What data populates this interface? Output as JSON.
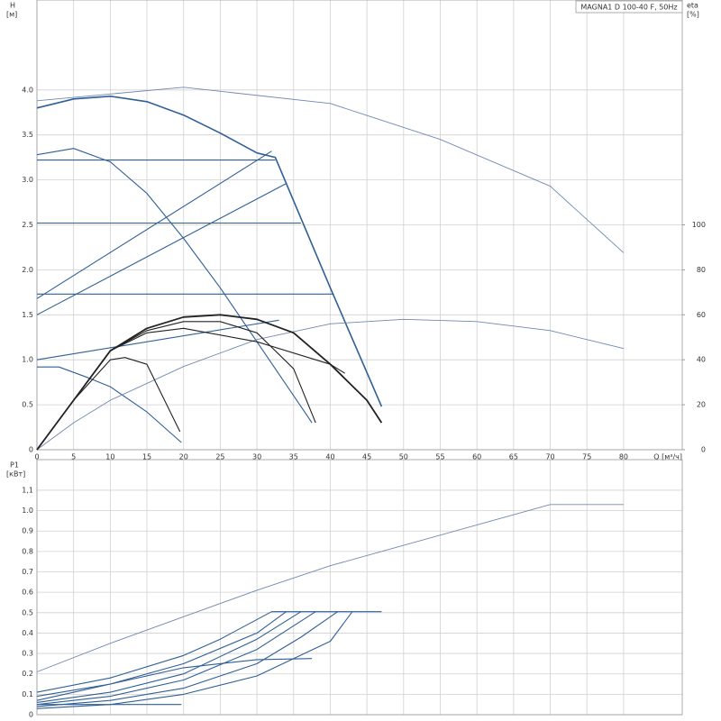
{
  "chart_data": [
    {
      "type": "line",
      "title": "MAGNA1 D 100-40 F, 50Hz",
      "y_label": "H",
      "y_unit": "[м]",
      "y2_label": "eta",
      "y2_unit": "[%]",
      "x_label": "Q [м³/ч]",
      "xlim": [
        0,
        88
      ],
      "ylim": [
        0,
        5
      ],
      "y2lim": [
        0,
        200
      ],
      "grid": true,
      "xticks": [
        0,
        5,
        10,
        15,
        20,
        25,
        30,
        35,
        40,
        45,
        50,
        55,
        60,
        65,
        70,
        75,
        80
      ],
      "yticks": [
        0,
        {
          "value": 0.5,
          "label": "0.5"
        },
        {
          "value": 1,
          "label": "1.0"
        },
        {
          "value": 1.5,
          "label": "1.5"
        },
        {
          "value": 2,
          "label": "2.0"
        },
        {
          "value": 2.5,
          "label": "2.5"
        },
        {
          "value": 3,
          "label": "3.0"
        },
        {
          "value": 3.5,
          "label": "3.5"
        },
        {
          "value": 4,
          "label": "4.0"
        }
      ],
      "y2ticks": [
        0,
        20,
        40,
        60,
        80,
        100
      ],
      "series": [
        {
          "color": "#2f5f96",
          "width": 1.6,
          "x": [
            0,
            5,
            10,
            15,
            20,
            25,
            30,
            32.5,
            40,
            47
          ],
          "values": [
            3.8,
            3.9,
            3.93,
            3.87,
            3.72,
            3.52,
            3.3,
            3.25,
            1.8,
            0.48
          ]
        },
        {
          "color": "#2f5f96",
          "width": 1.1,
          "x": [
            0,
            5,
            10,
            15,
            20,
            25,
            30,
            35,
            37.5
          ],
          "values": [
            3.28,
            3.35,
            3.2,
            2.85,
            2.35,
            1.8,
            1.2,
            0.6,
            0.3
          ]
        },
        {
          "color": "#2f5f96",
          "width": 1.1,
          "x": [
            0,
            3,
            7,
            10,
            15,
            19.7
          ],
          "values": [
            0.92,
            0.92,
            0.8,
            0.7,
            0.42,
            0.08
          ]
        },
        {
          "color": "#2f5f96",
          "width": 1.1,
          "x": [
            0,
            32.5
          ],
          "values": [
            3.22,
            3.22
          ]
        },
        {
          "color": "#2f5f96",
          "width": 1.1,
          "x": [
            0,
            36
          ],
          "values": [
            2.52,
            2.52
          ]
        },
        {
          "color": "#2f5f96",
          "width": 1.1,
          "x": [
            0,
            40.5
          ],
          "values": [
            1.73,
            1.73
          ]
        },
        {
          "color": "#2f5f96",
          "width": 1.1,
          "x": [
            0,
            32
          ],
          "values": [
            1.68,
            3.32
          ]
        },
        {
          "color": "#2f5f96",
          "width": 1.1,
          "x": [
            0,
            34
          ],
          "values": [
            1.5,
            2.96
          ]
        },
        {
          "color": "#2f5f96",
          "width": 1.1,
          "x": [
            0,
            33
          ],
          "values": [
            1.0,
            1.44
          ]
        },
        {
          "color": "#7088b0",
          "width": 0.9,
          "x": [
            0,
            20,
            40,
            55,
            70,
            80
          ],
          "values": [
            3.88,
            4.03,
            3.85,
            3.45,
            2.93,
            2.19
          ]
        },
        {
          "color": "#7088b0",
          "width": 0.9,
          "axis": "y2",
          "x": [
            0,
            5,
            10,
            20,
            30,
            40,
            50,
            60,
            70,
            80
          ],
          "values": [
            0,
            12,
            22,
            37,
            49,
            56,
            58,
            57,
            53,
            45
          ]
        },
        {
          "color": "#222222",
          "width": 1.1,
          "axis": "y2",
          "x": [
            0,
            5,
            10,
            12,
            15,
            19.5
          ],
          "values": [
            0,
            22,
            40,
            41,
            38,
            8
          ]
        },
        {
          "color": "#222222",
          "width": 1.1,
          "axis": "y2",
          "x": [
            0,
            5,
            10,
            15,
            20,
            25,
            30,
            35,
            38
          ],
          "values": [
            0,
            22,
            44,
            53,
            57,
            57,
            52,
            36,
            12
          ]
        },
        {
          "color": "#222222",
          "width": 1.8,
          "axis": "y2",
          "x": [
            0,
            5,
            10,
            15,
            20,
            25,
            30,
            35,
            40,
            45,
            47
          ],
          "values": [
            0,
            22,
            44,
            54,
            59,
            60,
            58,
            52,
            38,
            22,
            12
          ]
        },
        {
          "color": "#222222",
          "width": 1.1,
          "axis": "y2",
          "x": [
            0,
            5,
            10,
            15,
            20,
            30,
            40,
            42
          ],
          "values": [
            0,
            22,
            44,
            52,
            54,
            48,
            38,
            34
          ]
        }
      ]
    },
    {
      "type": "line",
      "y_label": "P1",
      "y_unit": "[кВт]",
      "xlim": [
        0,
        88
      ],
      "ylim": [
        0,
        1.25
      ],
      "grid": true,
      "xtick_labels": false,
      "xticks": [
        0,
        5,
        10,
        15,
        20,
        25,
        30,
        35,
        40,
        45,
        50,
        55,
        60,
        65,
        70,
        75,
        80
      ],
      "yticks": [
        0,
        {
          "value": 0.1,
          "label": "0.1"
        },
        {
          "value": 0.2,
          "label": "0.2"
        },
        {
          "value": 0.3,
          "label": "0.3"
        },
        {
          "value": 0.4,
          "label": "0.4"
        },
        {
          "value": 0.5,
          "label": "0.5"
        },
        {
          "value": 0.6,
          "label": "0.6"
        },
        {
          "value": 0.7,
          "label": "0.7"
        },
        {
          "value": 0.8,
          "label": "0.8"
        },
        {
          "value": 0.9,
          "label": "0.9"
        },
        {
          "value": 1,
          "label": "1.0"
        },
        {
          "value": 1.1,
          "label": "1,1"
        }
      ],
      "series": [
        {
          "color": "#7088b0",
          "width": 0.9,
          "x": [
            0,
            10,
            20,
            30,
            40,
            50,
            60,
            70,
            80
          ],
          "values": [
            0.21,
            0.35,
            0.48,
            0.61,
            0.73,
            0.83,
            0.93,
            1.03,
            1.03
          ]
        },
        {
          "color": "#2f5f96",
          "width": 1.1,
          "x": [
            0,
            10,
            20,
            25,
            32,
            47
          ],
          "values": [
            0.11,
            0.18,
            0.29,
            0.37,
            0.505,
            0.505
          ]
        },
        {
          "color": "#2f5f96",
          "width": 1.1,
          "x": [
            0,
            10,
            20,
            30,
            34
          ],
          "values": [
            0.09,
            0.15,
            0.25,
            0.4,
            0.505
          ]
        },
        {
          "color": "#2f5f96",
          "width": 1.1,
          "x": [
            0,
            10,
            20,
            30,
            36
          ],
          "values": [
            0.06,
            0.11,
            0.2,
            0.37,
            0.505
          ]
        },
        {
          "color": "#2f5f96",
          "width": 1.1,
          "x": [
            0,
            10,
            20,
            30,
            38
          ],
          "values": [
            0.05,
            0.09,
            0.17,
            0.32,
            0.505
          ]
        },
        {
          "color": "#2f5f96",
          "width": 1.1,
          "x": [
            0,
            10,
            20,
            30,
            36,
            41
          ],
          "values": [
            0.04,
            0.07,
            0.13,
            0.25,
            0.38,
            0.505
          ]
        },
        {
          "color": "#2f5f96",
          "width": 1.1,
          "x": [
            0,
            10,
            20,
            30,
            40,
            43
          ],
          "values": [
            0.03,
            0.05,
            0.1,
            0.19,
            0.36,
            0.505
          ]
        },
        {
          "color": "#2f5f96",
          "width": 1.1,
          "x": [
            0,
            10,
            20,
            30,
            37.5
          ],
          "values": [
            0.07,
            0.15,
            0.23,
            0.27,
            0.275
          ]
        },
        {
          "color": "#2f5f96",
          "width": 1.1,
          "x": [
            0,
            10,
            19.7
          ],
          "values": [
            0.05,
            0.05,
            0.05
          ]
        }
      ]
    }
  ]
}
